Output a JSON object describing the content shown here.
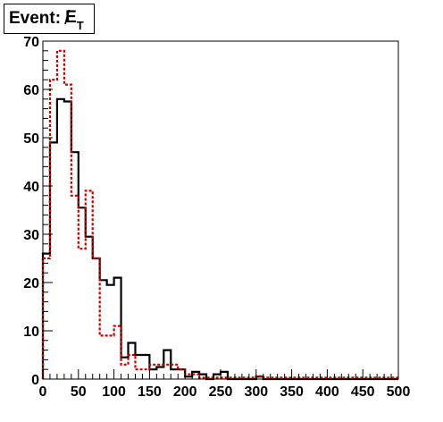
{
  "title": {
    "prefix": "Event:",
    "symbol": "E",
    "slash": "/",
    "subscript": "T"
  },
  "chart_data": {
    "type": "histogram",
    "title": "Event: E̸T",
    "xlabel": "",
    "ylabel": "",
    "xlim": [
      0,
      500
    ],
    "ylim": [
      0,
      70
    ],
    "grid": false,
    "legend": "none",
    "x_ticks": [
      0,
      50,
      100,
      150,
      200,
      250,
      300,
      350,
      400,
      450,
      500
    ],
    "y_ticks": [
      0,
      10,
      20,
      30,
      40,
      50,
      60,
      70
    ],
    "bin_edges": [
      0,
      10,
      20,
      30,
      40,
      50,
      60,
      70,
      80,
      90,
      100,
      110,
      120,
      130,
      140,
      150,
      160,
      170,
      180,
      190,
      200,
      210,
      220,
      230,
      240,
      250,
      260,
      270,
      280,
      290,
      300,
      310,
      320,
      330,
      340,
      350,
      360,
      370,
      380,
      390,
      400,
      410,
      420,
      430,
      440,
      450,
      460,
      470,
      480,
      490,
      500
    ],
    "series": [
      {
        "style": "solid",
        "color": "#000000",
        "values": [
          26,
          49,
          58,
          57.5,
          47,
          35.5,
          29.5,
          25,
          20.5,
          19.5,
          21,
          4.5,
          7.5,
          5,
          5,
          2,
          2.5,
          6,
          2,
          2,
          0.5,
          1.5,
          1,
          0,
          1,
          1.5,
          0,
          0,
          0,
          0,
          0.5,
          0,
          0,
          0,
          0,
          0,
          0,
          0,
          0,
          0,
          0,
          0,
          0,
          0,
          0,
          0,
          0,
          0,
          0,
          0
        ]
      },
      {
        "style": "dashed",
        "color": "#cc0000",
        "values": [
          25,
          62,
          68,
          61,
          38,
          27,
          39,
          25,
          9,
          9,
          11,
          3,
          5,
          2,
          2,
          3,
          3,
          3,
          3,
          2,
          1,
          1,
          0.3,
          0.3,
          0.3,
          0.3,
          0.3,
          0.3,
          0.3,
          0.3,
          0.6,
          0.3,
          0.3,
          0.3,
          0.3,
          0.3,
          0.3,
          0.3,
          0.3,
          0.3,
          0.3,
          0.3,
          0.3,
          0.3,
          0.3,
          0.3,
          0.3,
          0.3,
          0.3,
          0.3
        ]
      }
    ]
  }
}
